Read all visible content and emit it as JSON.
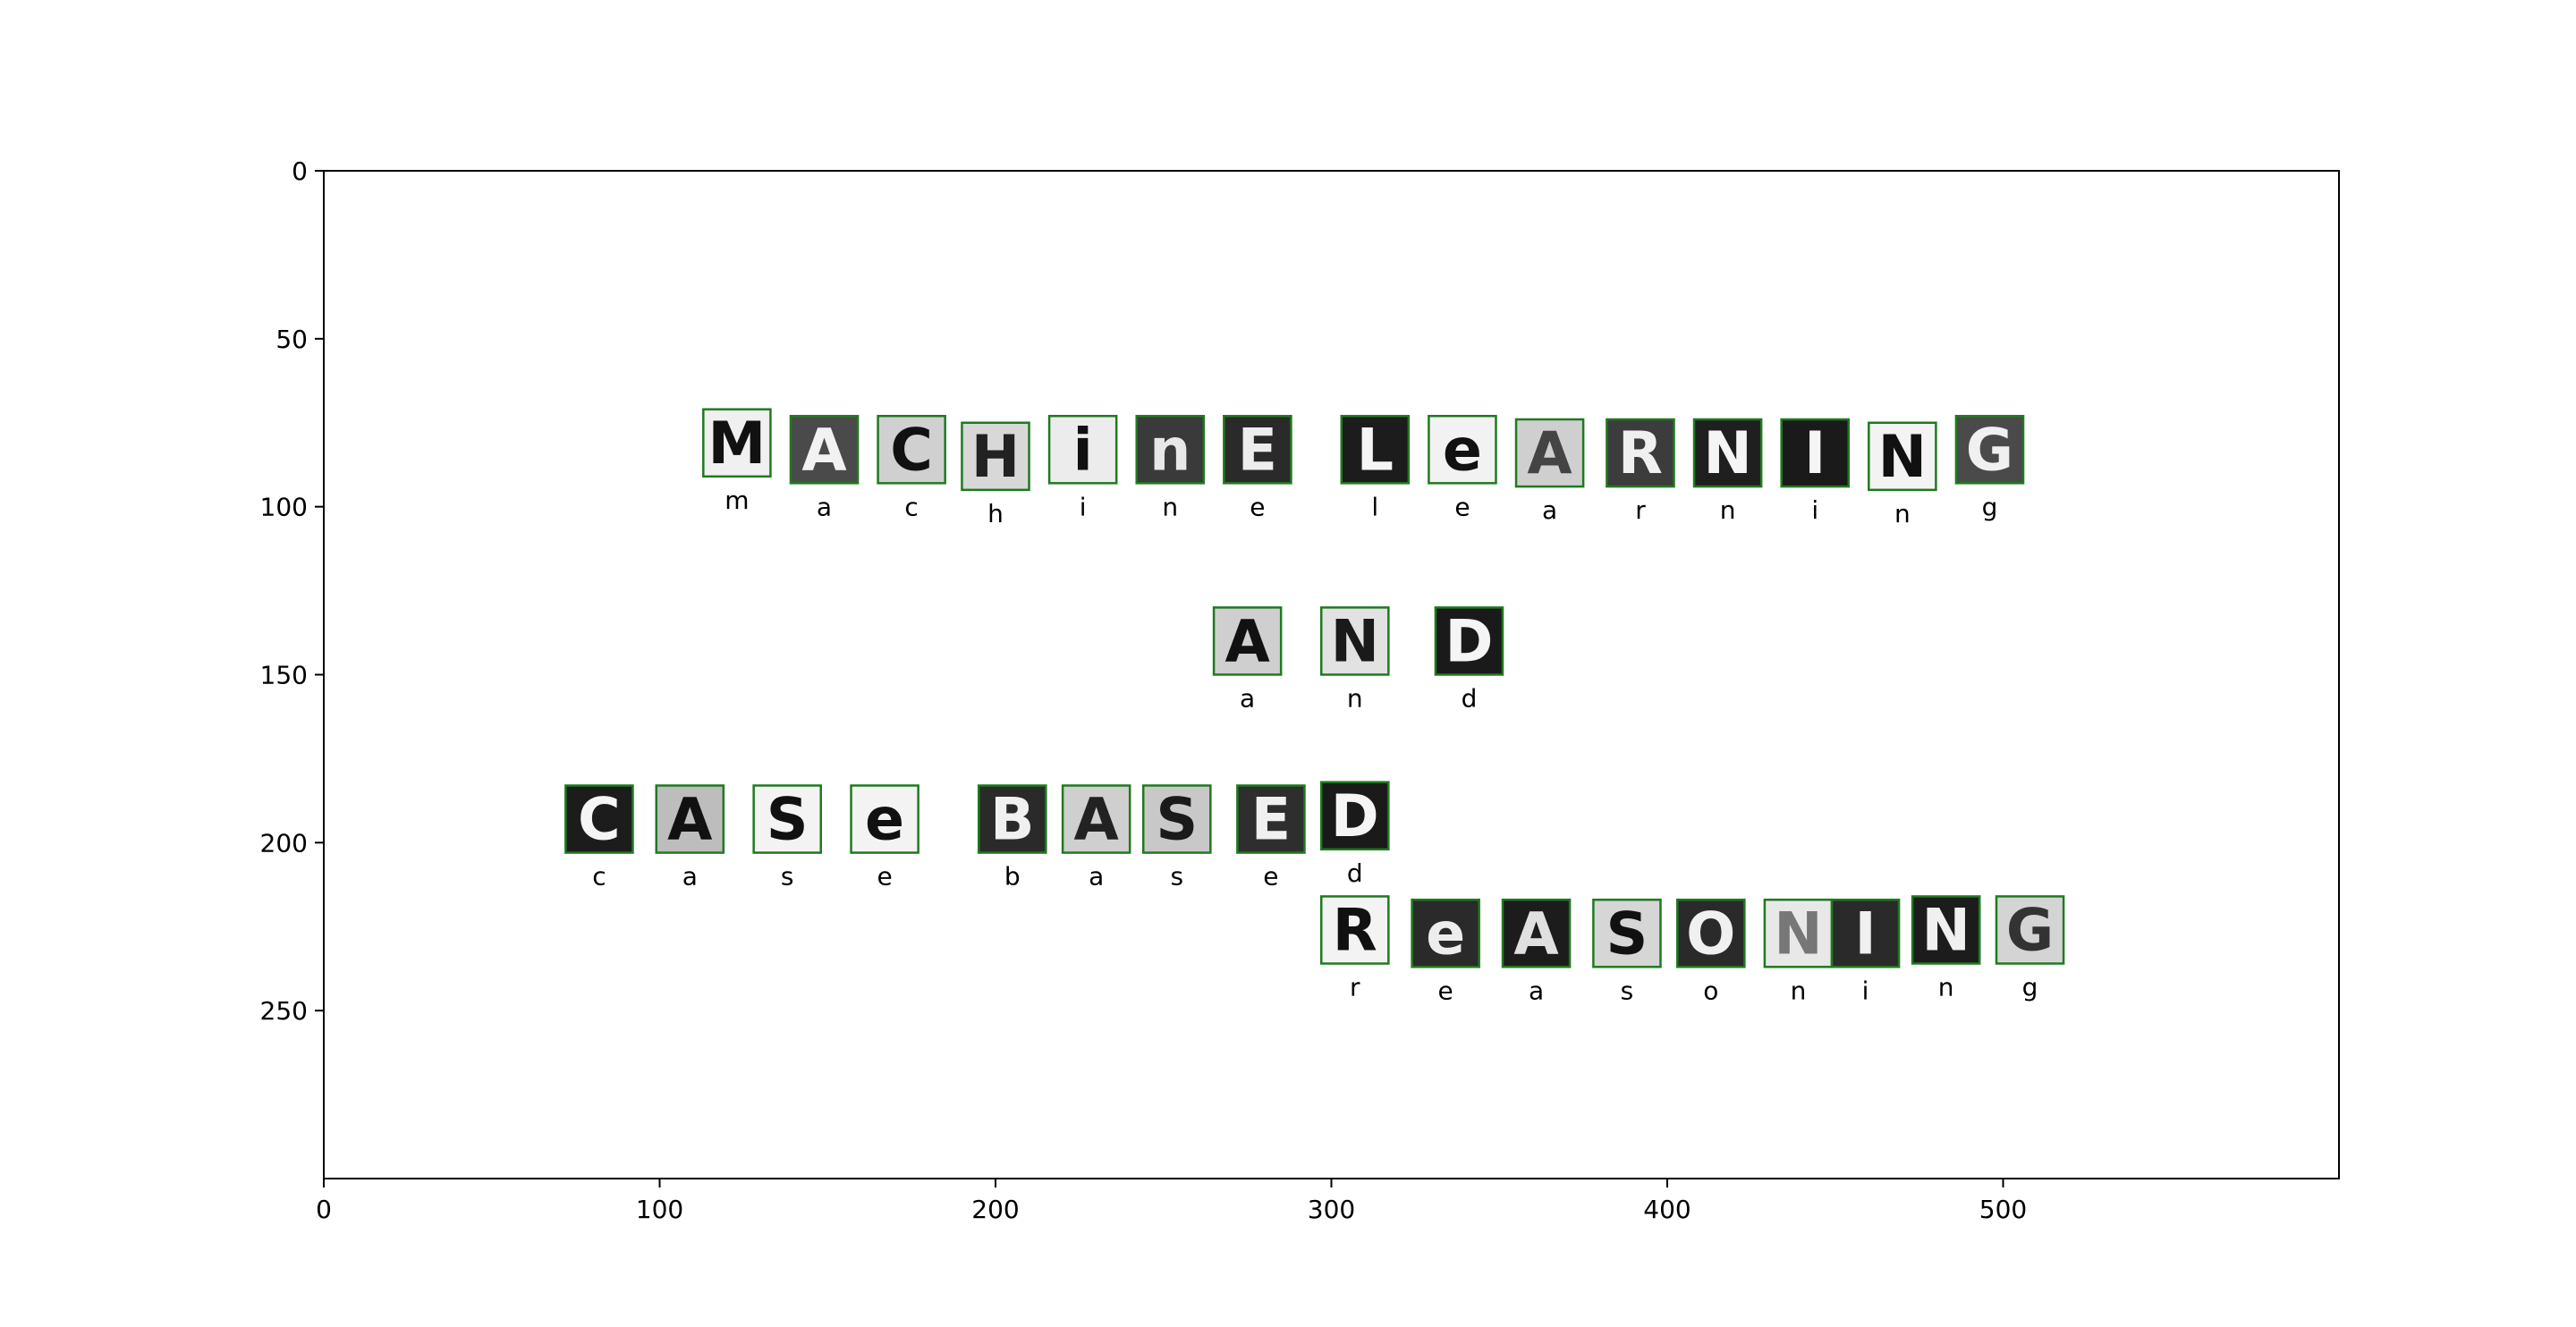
{
  "chart_data": {
    "type": "scatter",
    "title": "",
    "xlabel": "",
    "ylabel": "",
    "xlim": [
      0,
      600
    ],
    "ylim": [
      300,
      0
    ],
    "x_ticks": [
      0,
      100,
      200,
      300,
      400,
      500
    ],
    "y_ticks": [
      0,
      50,
      100,
      150,
      200,
      250
    ],
    "grid": false,
    "box_color": "#1f7a1f",
    "words": [
      {
        "glyphs": [
          {
            "glyph": "M",
            "pred": "m",
            "x": 113,
            "y": 71,
            "bg": "#f0f0f0",
            "fg": "#111111"
          },
          {
            "glyph": "A",
            "pred": "a",
            "x": 139,
            "y": 73,
            "bg": "#4a4a4a",
            "fg": "#f2f2f2"
          },
          {
            "glyph": "C",
            "pred": "c",
            "x": 165,
            "y": 73,
            "bg": "#d0d0d0",
            "fg": "#111111"
          },
          {
            "glyph": "H",
            "pred": "h",
            "x": 190,
            "y": 75,
            "bg": "#d8d8d8",
            "fg": "#222222"
          },
          {
            "glyph": "i",
            "pred": "i",
            "x": 216,
            "y": 73,
            "bg": "#ececec",
            "fg": "#111111"
          },
          {
            "glyph": "n",
            "pred": "n",
            "x": 242,
            "y": 73,
            "bg": "#3a3a3a",
            "fg": "#e8e8e8"
          },
          {
            "glyph": "E",
            "pred": "e",
            "x": 268,
            "y": 73,
            "bg": "#2a2a2a",
            "fg": "#ededed"
          },
          {
            "glyph": "L",
            "pred": "l",
            "x": 303,
            "y": 73,
            "bg": "#1c1c1c",
            "fg": "#f5f5f5"
          },
          {
            "glyph": "e",
            "pred": "e",
            "x": 329,
            "y": 73,
            "bg": "#f2f2f2",
            "fg": "#111111"
          },
          {
            "glyph": "A",
            "pred": "a",
            "x": 355,
            "y": 74,
            "bg": "#cfcfcf",
            "fg": "#444444"
          },
          {
            "glyph": "R",
            "pred": "r",
            "x": 382,
            "y": 74,
            "bg": "#3c3c3c",
            "fg": "#f0f0f0"
          },
          {
            "glyph": "N",
            "pred": "n",
            "x": 408,
            "y": 74,
            "bg": "#1f1f1f",
            "fg": "#f5f5f5"
          },
          {
            "glyph": "I",
            "pred": "i",
            "x": 434,
            "y": 74,
            "bg": "#1a1a1a",
            "fg": "#f5f5f5"
          },
          {
            "glyph": "N",
            "pred": "n",
            "x": 460,
            "y": 75,
            "bg": "#f3f3f3",
            "fg": "#111111"
          },
          {
            "glyph": "G",
            "pred": "g",
            "x": 486,
            "y": 73,
            "bg": "#4a4a4a",
            "fg": "#f0f0f0"
          }
        ]
      },
      {
        "glyphs": [
          {
            "glyph": "A",
            "pred": "a",
            "x": 265,
            "y": 130,
            "bg": "#cfcfcf",
            "fg": "#111111"
          },
          {
            "glyph": "N",
            "pred": "n",
            "x": 297,
            "y": 130,
            "bg": "#e2e2e2",
            "fg": "#1a1a1a"
          },
          {
            "glyph": "D",
            "pred": "d",
            "x": 331,
            "y": 130,
            "bg": "#1a1a1a",
            "fg": "#f5f5f5"
          }
        ]
      },
      {
        "glyphs": [
          {
            "glyph": "C",
            "pred": "c",
            "x": 72,
            "y": 183,
            "bg": "#1c1c1c",
            "fg": "#f5f5f5"
          },
          {
            "glyph": "A",
            "pred": "a",
            "x": 99,
            "y": 183,
            "bg": "#bdbdbd",
            "fg": "#111111"
          },
          {
            "glyph": "S",
            "pred": "s",
            "x": 128,
            "y": 183,
            "bg": "#f3f3f3",
            "fg": "#111111"
          },
          {
            "glyph": "e",
            "pred": "e",
            "x": 157,
            "y": 183,
            "bg": "#f3f3f3",
            "fg": "#111111"
          },
          {
            "glyph": "B",
            "pred": "b",
            "x": 195,
            "y": 183,
            "bg": "#2a2a2a",
            "fg": "#f0f0f0"
          },
          {
            "glyph": "A",
            "pred": "a",
            "x": 220,
            "y": 183,
            "bg": "#cfcfcf",
            "fg": "#222222"
          },
          {
            "glyph": "S",
            "pred": "s",
            "x": 244,
            "y": 183,
            "bg": "#c8c8c8",
            "fg": "#1a1a1a"
          },
          {
            "glyph": "E",
            "pred": "e",
            "x": 272,
            "y": 183,
            "bg": "#2e2e2e",
            "fg": "#f0f0f0"
          },
          {
            "glyph": "D",
            "pred": "d",
            "x": 297,
            "y": 182,
            "bg": "#1a1a1a",
            "fg": "#f5f5f5"
          }
        ]
      },
      {
        "glyphs": [
          {
            "glyph": "R",
            "pred": "r",
            "x": 297,
            "y": 216,
            "bg": "#f3f3f3",
            "fg": "#111111"
          },
          {
            "glyph": "e",
            "pred": "e",
            "x": 324,
            "y": 217,
            "bg": "#2a2a2a",
            "fg": "#ededed"
          },
          {
            "glyph": "A",
            "pred": "a",
            "x": 351,
            "y": 217,
            "bg": "#1c1c1c",
            "fg": "#e0e0e0"
          },
          {
            "glyph": "S",
            "pred": "s",
            "x": 378,
            "y": 217,
            "bg": "#d6d6d6",
            "fg": "#111111"
          },
          {
            "glyph": "O",
            "pred": "o",
            "x": 403,
            "y": 217,
            "bg": "#2a2a2a",
            "fg": "#f0f0f0"
          },
          {
            "glyph": "N",
            "pred": "n",
            "x": 429,
            "y": 217,
            "bg": "#e8e8e8",
            "fg": "#777777"
          },
          {
            "glyph": "I",
            "pred": "i",
            "x": 449,
            "y": 217,
            "bg": "#2a2a2a",
            "fg": "#f0f0f0"
          },
          {
            "glyph": "N",
            "pred": "n",
            "x": 473,
            "y": 216,
            "bg": "#1c1c1c",
            "fg": "#f0f0f0"
          },
          {
            "glyph": "G",
            "pred": "g",
            "x": 498,
            "y": 216,
            "bg": "#d4d4d4",
            "fg": "#333333"
          }
        ]
      }
    ]
  }
}
